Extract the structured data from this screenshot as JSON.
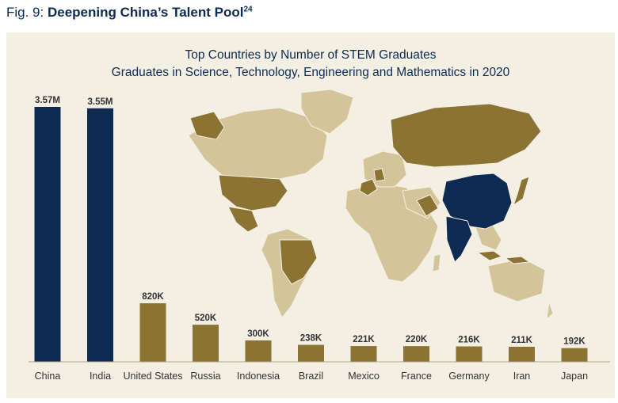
{
  "figure": {
    "prefix": "Fig. 9:",
    "title": "Deepening China’s Talent Pool",
    "footnote": "24"
  },
  "colors": {
    "top": "#0d2b52",
    "other": "#8b7333",
    "land": "#d4c49a",
    "background": "#f3efe3"
  },
  "chart_data": {
    "type": "bar",
    "title": "Top Countries by Number of STEM Graduates",
    "subtitle": "Graduates in Science, Technology, Engineering and Mathematics in 2020",
    "categories": [
      "China",
      "India",
      "United States",
      "Russia",
      "Indonesia",
      "Brazil",
      "Mexico",
      "France",
      "Germany",
      "Iran",
      "Japan"
    ],
    "values": [
      3570000,
      3550000,
      820000,
      520000,
      300000,
      238000,
      221000,
      220000,
      216000,
      211000,
      192000
    ],
    "value_labels": [
      "3.57M",
      "3.55M",
      "820K",
      "520K",
      "300K",
      "238K",
      "221K",
      "220K",
      "216K",
      "211K",
      "192K"
    ],
    "highlight": [
      "China",
      "India"
    ],
    "ylim": [
      0,
      3570000
    ],
    "xlabel": "",
    "ylabel": "",
    "grid": false
  }
}
